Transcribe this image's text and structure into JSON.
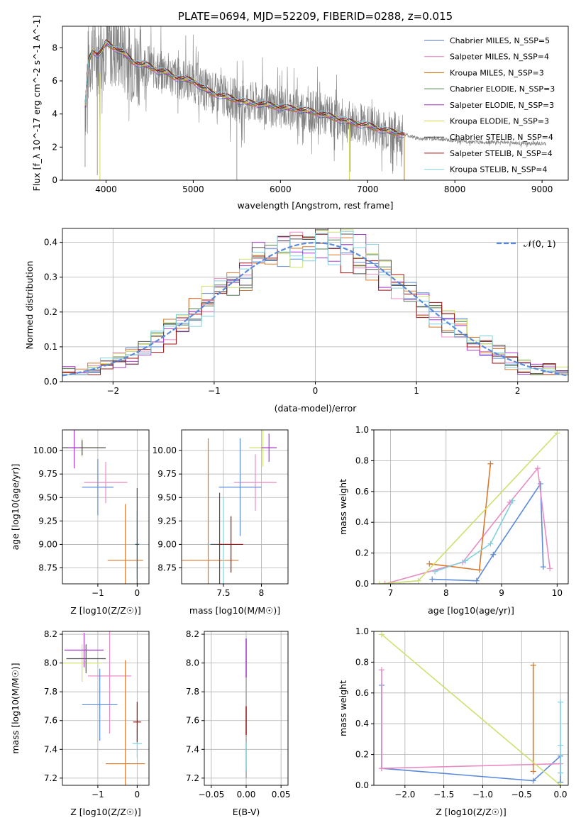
{
  "chart_data": [
    {
      "id": "spectrum",
      "type": "line",
      "title": "PLATE=0694, MJD=52209, FIBERID=0288, z=0.015",
      "xlabel": "wavelength [Angstrom, rest frame]",
      "ylabel": "Flux [f_λ 10^-17 erg cm^-2 s^-1 A^-1]",
      "xlim": [
        3500,
        9300
      ],
      "ylim": [
        0,
        9.3
      ],
      "xticks": [
        4000,
        5000,
        6000,
        7000,
        8000,
        9000
      ],
      "yticks": [
        0,
        2,
        4,
        6,
        8
      ],
      "data_color": "#808080",
      "data_points": [
        [
          3760,
          4.5
        ],
        [
          3800,
          7.2
        ],
        [
          3850,
          7.9
        ],
        [
          3900,
          7.6
        ],
        [
          3950,
          7.8
        ],
        [
          4000,
          8.3
        ],
        [
          4100,
          8.0
        ],
        [
          4200,
          7.7
        ],
        [
          4300,
          7.2
        ],
        [
          4400,
          7.0
        ],
        [
          4500,
          6.9
        ],
        [
          4600,
          6.6
        ],
        [
          4700,
          6.5
        ],
        [
          4800,
          6.2
        ],
        [
          4900,
          6.1
        ],
        [
          5000,
          6.0
        ],
        [
          5100,
          5.6
        ],
        [
          5200,
          5.3
        ],
        [
          5400,
          5.0
        ],
        [
          5600,
          4.7
        ],
        [
          5800,
          4.6
        ],
        [
          6000,
          4.4
        ],
        [
          6200,
          4.3
        ],
        [
          6400,
          4.1
        ],
        [
          6600,
          3.8
        ],
        [
          6800,
          3.5
        ],
        [
          7000,
          3.3
        ],
        [
          7200,
          3.0
        ],
        [
          7400,
          2.8
        ],
        [
          7600,
          2.5
        ],
        [
          7800,
          2.5
        ],
        [
          8000,
          2.4
        ],
        [
          8200,
          2.3
        ],
        [
          8400,
          2.3
        ],
        [
          8600,
          2.3
        ],
        [
          8800,
          2.2
        ],
        [
          9000,
          2.2
        ],
        [
          9050,
          2.2
        ]
      ],
      "legend": [
        {
          "label": "Chabrier MILES, N_SSP=5",
          "color": "#4c72b0"
        },
        {
          "label": "Salpeter MILES, N_SSP=4",
          "color": "#e377c2"
        },
        {
          "label": "Kroupa MILES, N_SSP=3",
          "color": "#cc6f00"
        },
        {
          "label": "Chabrier ELODIE, N_SSP=3",
          "color": "#4f8a4f"
        },
        {
          "label": "Salpeter ELODIE, N_SSP=3",
          "color": "#9b30c0"
        },
        {
          "label": "Kroupa ELODIE, N_SSP=3",
          "color": "#d8d850"
        },
        {
          "label": "Chabrier STELIB, N_SSP=4",
          "color": "#3a3a3a"
        },
        {
          "label": "Salpeter STELIB, N_SSP=4",
          "color": "#a01010"
        },
        {
          "label": "Kroupa STELIB, N_SSP=4",
          "color": "#80d0e0"
        }
      ]
    },
    {
      "id": "residuals",
      "type": "line",
      "xlabel": "(data-model)/error",
      "ylabel": "Normed distribution",
      "xlim": [
        -2.5,
        2.5
      ],
      "ylim": [
        0,
        0.44
      ],
      "xticks": [
        -2,
        -1,
        0,
        1,
        2
      ],
      "yticks": [
        0.0,
        0.1,
        0.2,
        0.3,
        0.4
      ],
      "legend_label": "𝒩(0, 1)",
      "gauss_color": "#5b8bd8",
      "step_colors": [
        "#5b8bd8",
        "#e88cc4",
        "#d9782a",
        "#4f7f4f",
        "#a83ad0",
        "#cfe070",
        "#505050",
        "#a01010",
        "#80d0e0"
      ]
    },
    {
      "id": "age_vs_Z",
      "type": "scatter",
      "xlabel": "Z [log10(Z/Z☉)]",
      "ylabel": "age  [log10(age/yr)]",
      "xlim": [
        -1.9,
        0.3
      ],
      "ylim": [
        8.58,
        10.22
      ],
      "xticks": [
        -1,
        0
      ],
      "yticks": [
        8.75,
        9.0,
        9.25,
        9.5,
        9.75,
        10.0
      ],
      "crosses": [
        {
          "x": -0.8,
          "y": 9.66,
          "xerr": 0.55,
          "yerr": 0.22,
          "color": "#e88cc4"
        },
        {
          "x": -1.0,
          "y": 9.61,
          "xerr": 0.4,
          "yerr": 0.3,
          "color": "#5b8bd8"
        },
        {
          "x": -0.3,
          "y": 8.83,
          "xerr": 0.45,
          "yerr": 0.6,
          "color": "#d9782a"
        },
        {
          "x": -1.4,
          "y": 10.03,
          "xerr": 0.55,
          "yerr": 0.1,
          "color": "#cfe070"
        },
        {
          "x": -1.4,
          "y": 10.03,
          "xerr": 0.6,
          "yerr": 0.08,
          "color": "#505050"
        },
        {
          "x": -1.6,
          "y": 10.03,
          "xerr": 0.15,
          "yerr": 0.22,
          "color": "#a83ad0"
        },
        {
          "x": 0.0,
          "y": 9.0,
          "xerr": 0.08,
          "yerr": 0.36,
          "color": "#80d0e0"
        },
        {
          "x": 0.0,
          "y": 9.0,
          "xerr": 0.05,
          "yerr": 0.6,
          "color": "#505050"
        }
      ]
    },
    {
      "id": "age_vs_mass",
      "type": "scatter",
      "xlabel": "mass [log10(M/M☉)]",
      "xlim": [
        6.95,
        8.35
      ],
      "ylim": [
        8.58,
        10.22
      ],
      "xticks": [
        7.5,
        8.0
      ],
      "yticks": [
        8.75,
        9.0,
        9.25,
        9.5,
        9.75,
        10.0
      ],
      "crosses": [
        {
          "x": 7.92,
          "y": 9.66,
          "xerr": 0.28,
          "yerr": 0.3,
          "color": "#e88cc4"
        },
        {
          "x": 7.72,
          "y": 9.61,
          "xerr": 0.28,
          "yerr": 0.52,
          "color": "#5b8bd8"
        },
        {
          "x": 7.3,
          "y": 8.83,
          "xerr": 0.4,
          "yerr": 1.3,
          "color": "#d9782a"
        },
        {
          "x": 8.02,
          "y": 10.03,
          "xerr": 0.18,
          "yerr": 0.2,
          "color": "#cfe070"
        },
        {
          "x": 8.1,
          "y": 10.03,
          "xerr": 0.1,
          "yerr": 0.15,
          "color": "#a83ad0"
        },
        {
          "x": 7.5,
          "y": 9.0,
          "xerr": 0.2,
          "yerr": 0.5,
          "color": "#80d0e0"
        },
        {
          "x": 7.45,
          "y": 9.0,
          "xerr": 0.12,
          "yerr": 0.55,
          "color": "#505050"
        },
        {
          "x": 7.6,
          "y": 9.0,
          "xerr": 0.16,
          "yerr": 0.3,
          "color": "#a01010"
        }
      ]
    },
    {
      "id": "weight_vs_age",
      "type": "line",
      "xlabel": "age  [log10(age/yr)]",
      "ylabel": "mass weight",
      "xlim": [
        6.7,
        10.2
      ],
      "ylim": [
        0,
        1.0
      ],
      "xticks": [
        7,
        8,
        9,
        10
      ],
      "yticks": [
        0.0,
        0.2,
        0.4,
        0.6,
        0.8,
        1.0
      ],
      "series": [
        {
          "color": "#5b8bd8",
          "x": [
            7.75,
            8.55,
            8.85,
            9.7,
            9.75
          ],
          "y": [
            0.03,
            0.02,
            0.19,
            0.65,
            0.11
          ]
        },
        {
          "color": "#e88cc4",
          "x": [
            6.9,
            8.3,
            9.15,
            9.65,
            9.87
          ],
          "y": [
            0.0,
            0.14,
            0.53,
            0.75,
            0.1
          ]
        },
        {
          "color": "#d9782a",
          "x": [
            7.7,
            8.6,
            8.8
          ],
          "y": [
            0.13,
            0.09,
            0.78
          ]
        },
        {
          "color": "#cfe070",
          "x": [
            6.8,
            7.5,
            10.0
          ],
          "y": [
            0.0,
            0.02,
            0.98
          ]
        },
        {
          "color": "#80d0e0",
          "x": [
            7.8,
            8.35,
            8.8,
            9.2
          ],
          "y": [
            0.08,
            0.15,
            0.26,
            0.54
          ]
        }
      ]
    },
    {
      "id": "mass_vs_Z",
      "type": "scatter",
      "xlabel": "Z [log10(Z/Z☉)]",
      "ylabel": "mass [log10(M/M☉)]",
      "xlim": [
        -1.9,
        0.3
      ],
      "ylim": [
        7.15,
        8.22
      ],
      "xticks": [
        -1,
        0
      ],
      "yticks": [
        7.2,
        7.4,
        7.6,
        7.8,
        8.0,
        8.2
      ],
      "crosses": [
        {
          "x": -0.7,
          "y": 7.91,
          "xerr": 0.55,
          "yerr": 0.4,
          "color": "#e88cc4"
        },
        {
          "x": -0.95,
          "y": 7.71,
          "xerr": 0.45,
          "yerr": 0.25,
          "color": "#5b8bd8"
        },
        {
          "x": -0.3,
          "y": 7.3,
          "xerr": 0.5,
          "yerr": 0.72,
          "color": "#d9782a"
        },
        {
          "x": -1.4,
          "y": 8.0,
          "xerr": 0.5,
          "yerr": 0.13,
          "color": "#cfe070"
        },
        {
          "x": -1.3,
          "y": 8.03,
          "xerr": 0.5,
          "yerr": 0.1,
          "color": "#505050"
        },
        {
          "x": -1.35,
          "y": 8.09,
          "xerr": 0.5,
          "yerr": 0.12,
          "color": "#a83ad0"
        },
        {
          "x": 0.0,
          "y": 7.44,
          "xerr": 0.12,
          "yerr": 0.1,
          "color": "#80d0e0"
        },
        {
          "x": 0.0,
          "y": 7.59,
          "xerr": 0.1,
          "yerr": 0.14,
          "color": "#a01010"
        }
      ]
    },
    {
      "id": "mass_vs_EBV",
      "type": "scatter",
      "xlabel": "E(B-V)",
      "xlim": [
        -0.06,
        0.06
      ],
      "ylim": [
        7.15,
        8.22
      ],
      "xticks": [
        -0.05,
        0.0,
        0.05
      ],
      "xtick_labels": [
        "−0.05",
        "0.00",
        "0.05"
      ],
      "yticks": [
        7.2,
        7.4,
        7.6,
        7.8,
        8.0,
        8.2
      ],
      "points": [
        {
          "x": 0,
          "y": 7.3
        },
        {
          "x": 0,
          "y": 8.1
        },
        {
          "x": 0,
          "y": 7.75
        }
      ]
    },
    {
      "id": "weight_vs_Z",
      "type": "line",
      "xlabel": "Z [log10(Z/Z☉)]",
      "ylabel": "mass weight",
      "xlim": [
        -2.4,
        0.1
      ],
      "ylim": [
        0,
        1.0
      ],
      "xticks": [
        -2.0,
        -1.5,
        -1.0,
        -0.5,
        0.0
      ],
      "xtick_labels": [
        "−2.0",
        "−1.5",
        "−1.0",
        "−0.5",
        "0.0"
      ],
      "yticks": [
        0.0,
        0.2,
        0.4,
        0.6,
        0.8,
        1.0
      ],
      "series": [
        {
          "color": "#5b8bd8",
          "x": [
            -2.3,
            -2.3,
            -0.35,
            0.0,
            0.0
          ],
          "y": [
            0.65,
            0.11,
            0.03,
            0.19,
            0.02
          ]
        },
        {
          "color": "#e88cc4",
          "x": [
            -2.3,
            -2.3,
            0.0
          ],
          "y": [
            0.75,
            0.11,
            0.14
          ]
        },
        {
          "color": "#d9782a",
          "x": [
            -0.35,
            -0.35
          ],
          "y": [
            0.78,
            0.09
          ]
        },
        {
          "color": "#cfe070",
          "x": [
            -2.3,
            0.0
          ],
          "y": [
            0.98,
            0.0
          ]
        },
        {
          "color": "#80d0e0",
          "x": [
            0.0,
            0.0,
            0.0
          ],
          "y": [
            0.54,
            0.26,
            0.08
          ]
        }
      ]
    }
  ]
}
